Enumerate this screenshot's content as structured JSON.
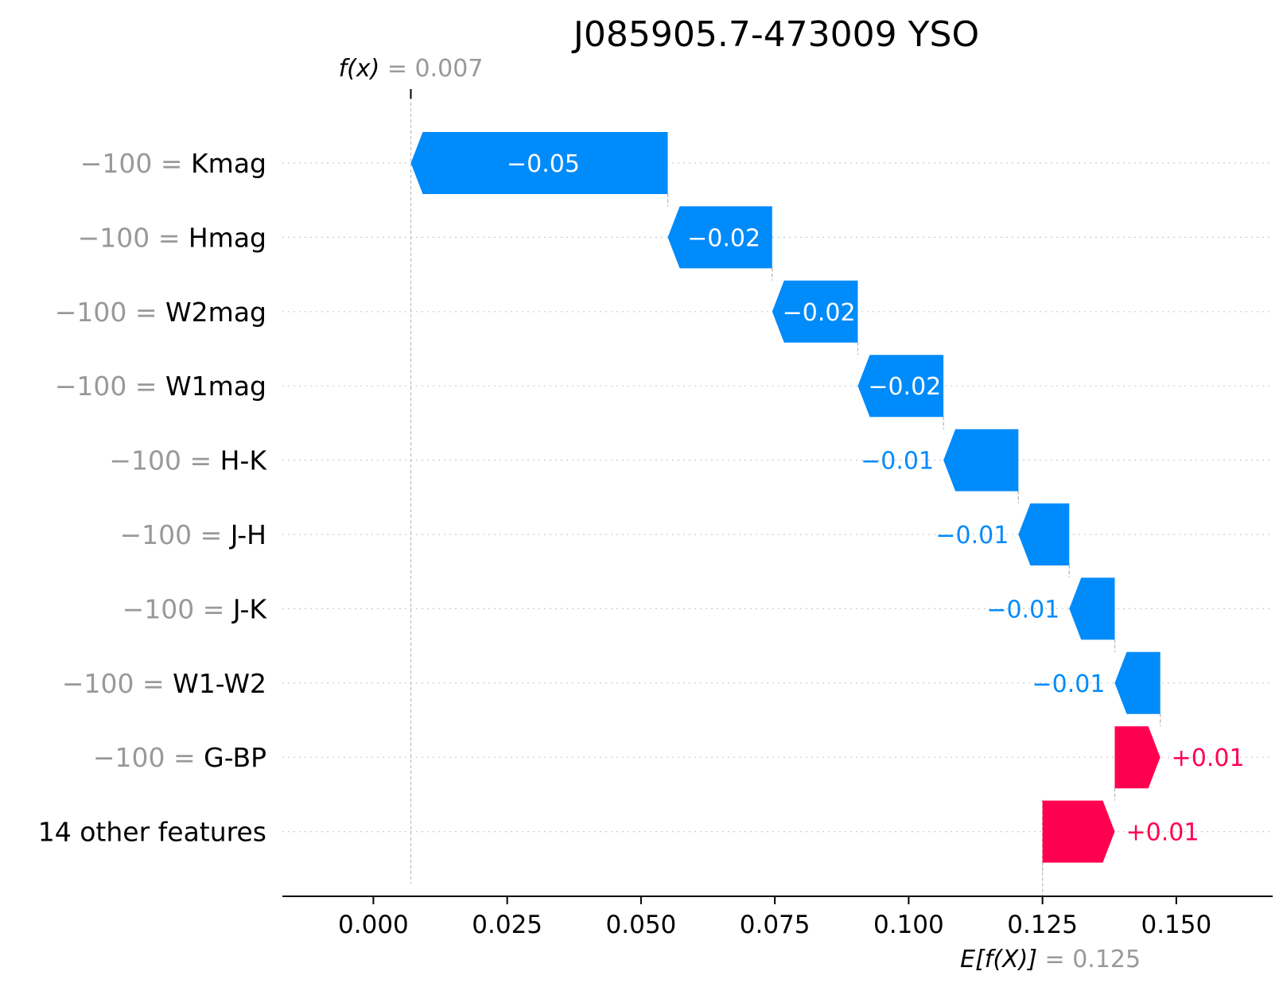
{
  "chart_data": {
    "type": "waterfall",
    "title": "J085905.7-473009 YSO",
    "fx": {
      "label_italic": "f(x)",
      "label_suffix": " = 0.007",
      "value": 0.007
    },
    "base": {
      "label_italic": "E[f(X)]",
      "label_suffix": " = 0.125",
      "value": 0.125
    },
    "xlim": [
      -0.017,
      0.168
    ],
    "xticks": [
      0.0,
      0.025,
      0.05,
      0.075,
      0.1,
      0.125,
      0.15
    ],
    "xtick_labels": [
      "0.000",
      "0.025",
      "0.050",
      "0.075",
      "0.100",
      "0.125",
      "0.150"
    ],
    "features": [
      {
        "value_text": "−100 = ",
        "name": "Kmag",
        "contribution": -0.048,
        "label": "−0.05"
      },
      {
        "value_text": "−100 = ",
        "name": "Hmag",
        "contribution": -0.0195,
        "label": "−0.02"
      },
      {
        "value_text": "−100 = ",
        "name": "W2mag",
        "contribution": -0.016,
        "label": "−0.02"
      },
      {
        "value_text": "−100 = ",
        "name": "W1mag",
        "contribution": -0.016,
        "label": "−0.02"
      },
      {
        "value_text": "−100 = ",
        "name": "H-K",
        "contribution": -0.014,
        "label": "−0.01"
      },
      {
        "value_text": "−100 = ",
        "name": "J-H",
        "contribution": -0.0095,
        "label": "−0.01"
      },
      {
        "value_text": "−100 = ",
        "name": "J-K",
        "contribution": -0.0085,
        "label": "−0.01"
      },
      {
        "value_text": "−100 = ",
        "name": "W1-W2",
        "contribution": -0.0085,
        "label": "−0.01"
      },
      {
        "value_text": "−100 = ",
        "name": "G-BP",
        "contribution": 0.0085,
        "label": "+0.01"
      },
      {
        "value_text": "",
        "name": "14 other features",
        "contribution": 0.0135,
        "label": "+0.01"
      }
    ],
    "colors": {
      "negative": "#008bfb",
      "positive": "#ff0051",
      "value_grey": "#999999"
    }
  }
}
